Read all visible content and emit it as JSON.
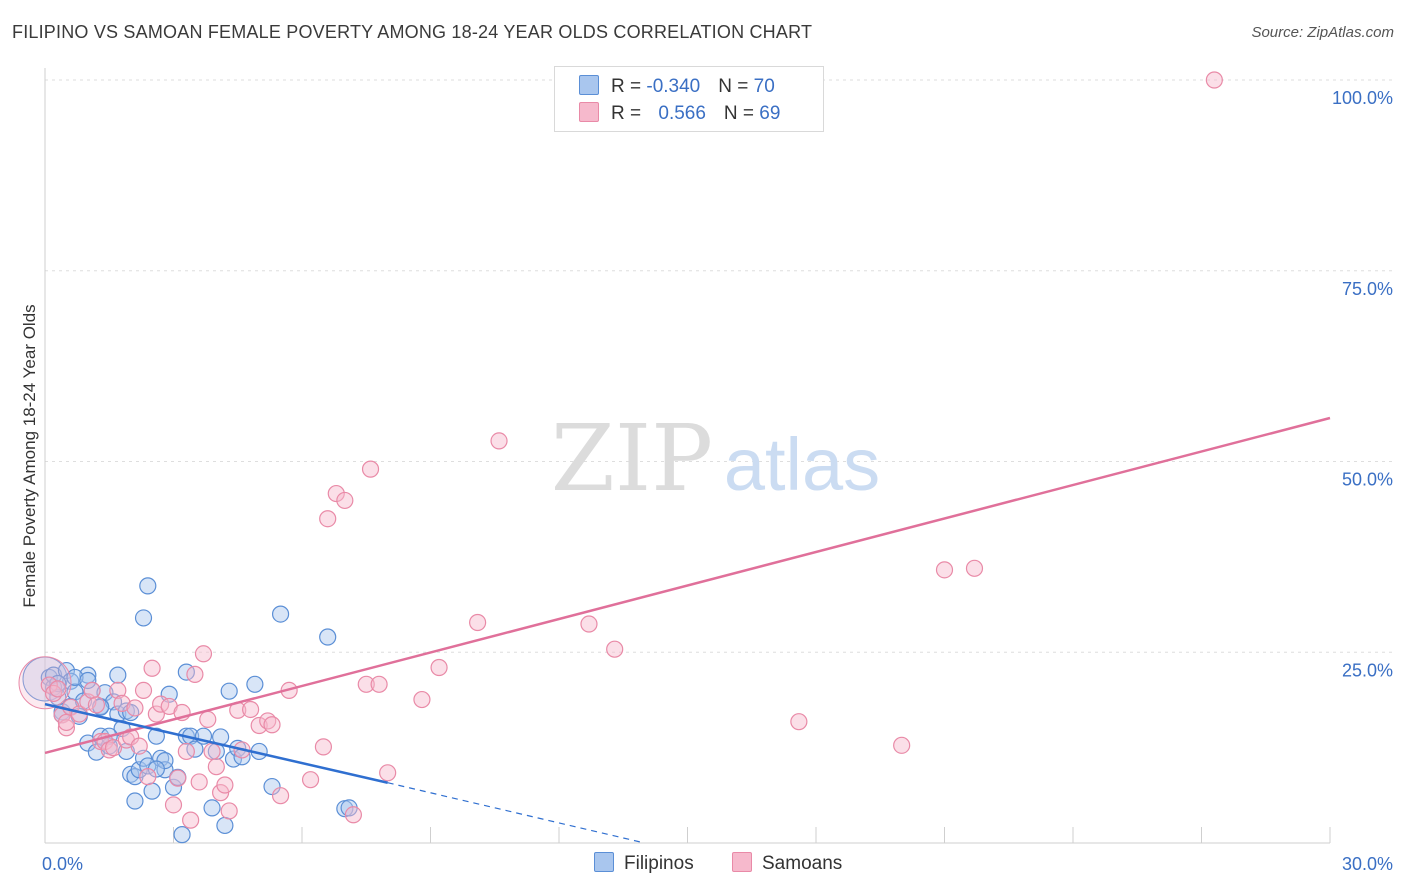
{
  "title": "FILIPINO VS SAMOAN FEMALE POVERTY AMONG 18-24 YEAR OLDS CORRELATION CHART",
  "source": "Source: ZipAtlas.com",
  "watermark": {
    "zip": "ZIP",
    "atlas": "atlas"
  },
  "legend": {
    "rows": [
      {
        "r_label": "R = ",
        "r_value": "-0.340",
        "n_label": "N = ",
        "n_value": "70"
      },
      {
        "r_label": "R = ",
        "r_value": "0.566",
        "n_label": "N = ",
        "n_value": "69"
      }
    ]
  },
  "bottom_legend": {
    "filipinos": "Filipinos",
    "samoans": "Samoans"
  },
  "colors": {
    "filipinos_fill": "#a9c6ee",
    "filipinos_stroke": "#5b8fd6",
    "filipinos_line": "#2f6fd0",
    "samoans_fill": "#f6b9cc",
    "samoans_stroke": "#e98aa7",
    "samoans_line": "#e0709a",
    "axis_text": "#3a6fc4"
  },
  "chart_data": {
    "type": "scatter",
    "title": "FILIPINO VS SAMOAN FEMALE POVERTY AMONG 18-24 YEAR OLDS CORRELATION CHART",
    "xlabel": "",
    "ylabel": "Female Poverty Among 18-24 Year Olds",
    "xlim": [
      0,
      30
    ],
    "ylim": [
      0,
      100
    ],
    "x_tick_labels": [
      "0.0%",
      "30.0%"
    ],
    "y_tick_labels": [
      "25.0%",
      "50.0%",
      "75.0%",
      "100.0%"
    ],
    "y_ticks": [
      25,
      50,
      75,
      100
    ],
    "grid": true,
    "series": [
      {
        "name": "Filipinos",
        "r": -0.34,
        "n": 70,
        "trend": {
          "x": [
            0,
            8
          ],
          "y": [
            18.2,
            7.9
          ],
          "dashed_to": [
            14,
            0
          ]
        },
        "points": [
          [
            0.1,
            21.7
          ],
          [
            0.2,
            20.4
          ],
          [
            0.2,
            22.0
          ],
          [
            0.3,
            19.1
          ],
          [
            0.4,
            17.2
          ],
          [
            0.5,
            22.6
          ],
          [
            0.6,
            21.2
          ],
          [
            0.6,
            17.9
          ],
          [
            0.7,
            19.8
          ],
          [
            0.8,
            16.6
          ],
          [
            0.9,
            18.6
          ],
          [
            1.0,
            22.0
          ],
          [
            1.0,
            13.1
          ],
          [
            1.1,
            20.0
          ],
          [
            1.2,
            11.9
          ],
          [
            1.3,
            14.0
          ],
          [
            1.3,
            17.9
          ],
          [
            1.4,
            19.7
          ],
          [
            1.5,
            12.7
          ],
          [
            1.6,
            18.5
          ],
          [
            1.7,
            22.0
          ],
          [
            1.7,
            16.9
          ],
          [
            1.8,
            15.0
          ],
          [
            1.9,
            12.0
          ],
          [
            1.9,
            17.3
          ],
          [
            2.0,
            9.0
          ],
          [
            2.1,
            8.7
          ],
          [
            2.1,
            5.5
          ],
          [
            2.2,
            9.6
          ],
          [
            2.3,
            29.5
          ],
          [
            2.3,
            11.1
          ],
          [
            2.4,
            33.7
          ],
          [
            2.4,
            10.1
          ],
          [
            2.5,
            6.8
          ],
          [
            2.6,
            14.0
          ],
          [
            2.7,
            11.1
          ],
          [
            2.8,
            9.6
          ],
          [
            2.8,
            10.8
          ],
          [
            2.9,
            19.5
          ],
          [
            3.0,
            7.3
          ],
          [
            3.1,
            8.6
          ],
          [
            3.2,
            1.1
          ],
          [
            3.3,
            14.0
          ],
          [
            3.3,
            22.4
          ],
          [
            3.4,
            14.0
          ],
          [
            3.5,
            12.3
          ],
          [
            3.7,
            14.0
          ],
          [
            3.9,
            4.6
          ],
          [
            4.0,
            12.0
          ],
          [
            4.1,
            13.9
          ],
          [
            4.2,
            2.3
          ],
          [
            4.3,
            19.9
          ],
          [
            4.4,
            11.0
          ],
          [
            4.5,
            12.4
          ],
          [
            4.6,
            11.3
          ],
          [
            4.9,
            20.8
          ],
          [
            5.0,
            12.0
          ],
          [
            5.3,
            7.4
          ],
          [
            5.5,
            30.0
          ],
          [
            6.6,
            27.0
          ],
          [
            7.0,
            4.5
          ],
          [
            7.1,
            4.6
          ],
          [
            1.5,
            14.0
          ],
          [
            0.7,
            21.7
          ],
          [
            1.3,
            17.8
          ],
          [
            0.4,
            16.8
          ],
          [
            2.0,
            17.1
          ],
          [
            0.3,
            20.9
          ],
          [
            1.0,
            21.3
          ],
          [
            2.6,
            9.7
          ]
        ]
      },
      {
        "name": "Samoans",
        "r": 0.566,
        "n": 69,
        "trend": {
          "x": [
            0,
            30
          ],
          "y": [
            11.8,
            55.7
          ]
        },
        "points": [
          [
            0.1,
            20.7
          ],
          [
            0.2,
            19.6
          ],
          [
            0.3,
            20.2
          ],
          [
            0.4,
            16.8
          ],
          [
            0.5,
            15.1
          ],
          [
            0.5,
            15.8
          ],
          [
            0.6,
            17.8
          ],
          [
            0.8,
            16.9
          ],
          [
            1.0,
            18.5
          ],
          [
            1.1,
            20.0
          ],
          [
            1.2,
            18.1
          ],
          [
            1.3,
            13.3
          ],
          [
            1.4,
            13.3
          ],
          [
            1.5,
            12.2
          ],
          [
            1.6,
            12.5
          ],
          [
            1.7,
            20.0
          ],
          [
            1.8,
            18.3
          ],
          [
            1.9,
            13.5
          ],
          [
            2.0,
            13.9
          ],
          [
            2.1,
            17.7
          ],
          [
            2.2,
            12.7
          ],
          [
            2.3,
            20.0
          ],
          [
            2.4,
            8.7
          ],
          [
            2.5,
            22.9
          ],
          [
            2.6,
            16.9
          ],
          [
            2.7,
            18.2
          ],
          [
            2.9,
            17.9
          ],
          [
            3.0,
            5.0
          ],
          [
            3.1,
            8.5
          ],
          [
            3.2,
            17.1
          ],
          [
            3.3,
            12.0
          ],
          [
            3.4,
            3.0
          ],
          [
            3.5,
            22.1
          ],
          [
            3.6,
            8.0
          ],
          [
            3.7,
            24.8
          ],
          [
            3.8,
            16.2
          ],
          [
            3.9,
            12.0
          ],
          [
            4.0,
            10.0
          ],
          [
            4.1,
            6.6
          ],
          [
            4.2,
            7.6
          ],
          [
            4.3,
            4.2
          ],
          [
            4.5,
            17.4
          ],
          [
            4.6,
            12.2
          ],
          [
            4.8,
            17.5
          ],
          [
            5.0,
            15.4
          ],
          [
            5.2,
            16.0
          ],
          [
            5.3,
            15.5
          ],
          [
            5.5,
            6.2
          ],
          [
            5.7,
            20.0
          ],
          [
            6.2,
            8.3
          ],
          [
            6.5,
            12.6
          ],
          [
            6.6,
            42.5
          ],
          [
            6.8,
            45.8
          ],
          [
            7.0,
            44.9
          ],
          [
            7.2,
            3.7
          ],
          [
            7.5,
            20.8
          ],
          [
            7.6,
            49.0
          ],
          [
            7.8,
            20.8
          ],
          [
            8.0,
            9.2
          ],
          [
            8.8,
            18.8
          ],
          [
            9.2,
            23.0
          ],
          [
            10.1,
            28.9
          ],
          [
            10.6,
            52.7
          ],
          [
            12.7,
            28.7
          ],
          [
            13.3,
            25.4
          ],
          [
            17.6,
            15.9
          ],
          [
            20.0,
            12.8
          ],
          [
            21.0,
            35.8
          ],
          [
            21.7,
            36.0
          ]
        ],
        "outlier": [
          27.3,
          100
        ]
      }
    ]
  }
}
